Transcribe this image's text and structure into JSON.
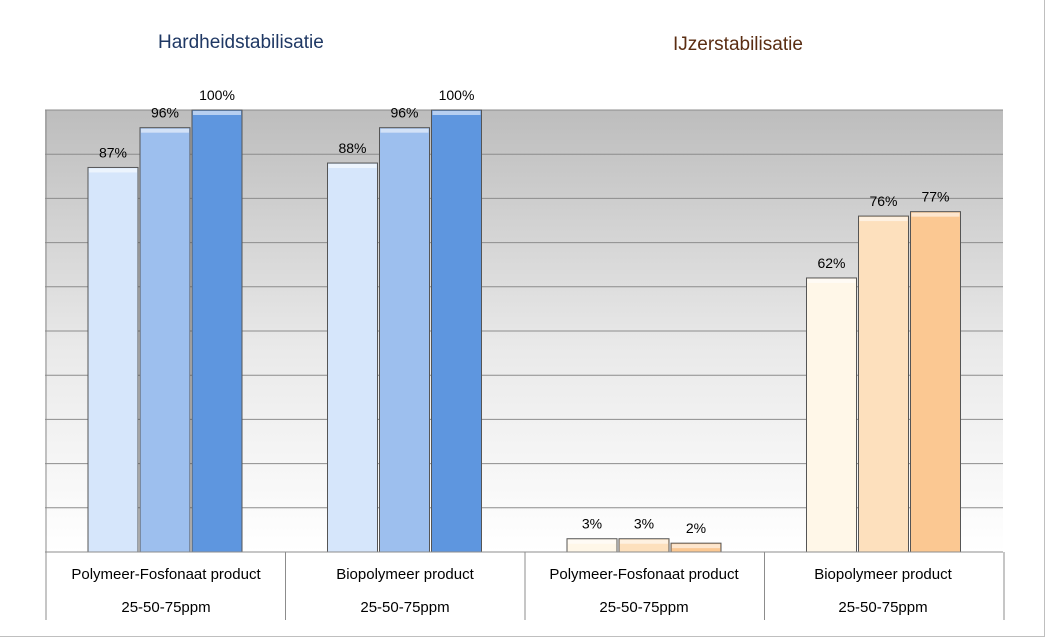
{
  "chart_data": [
    {
      "type": "bar",
      "title": "Hardheidstabilisatie",
      "categories": [
        "Polymeer-Fosfonaat product",
        "Biopolymeer product"
      ],
      "subcategory_label": "25-50-75ppm",
      "series": [
        {
          "values": [
            87,
            88
          ]
        },
        {
          "values": [
            96,
            96
          ]
        },
        {
          "values": [
            100,
            100
          ]
        }
      ],
      "data_labels": [
        [
          "87%",
          "96%",
          "100%"
        ],
        [
          "88%",
          "96%",
          "100%"
        ]
      ],
      "colors": [
        "#d6e6fb",
        "#9dbfee",
        "#5e96df"
      ],
      "ylim": [
        0,
        100
      ],
      "grid": true,
      "xlabel": "",
      "ylabel": ""
    },
    {
      "type": "bar",
      "title": "IJzerstabilisatie",
      "categories": [
        "Polymeer-Fosfonaat product",
        "Biopolymeer product"
      ],
      "subcategory_label": "25-50-75ppm",
      "series": [
        {
          "values": [
            3,
            62
          ]
        },
        {
          "values": [
            3,
            76
          ]
        },
        {
          "values": [
            2,
            77
          ]
        }
      ],
      "data_labels": [
        [
          "3%",
          "3%",
          "2%"
        ],
        [
          "62%",
          "76%",
          "77%"
        ]
      ],
      "colors": [
        "#fff7e8",
        "#fde0bd",
        "#fbc892"
      ],
      "ylim": [
        0,
        100
      ],
      "grid": true,
      "xlabel": "",
      "ylabel": ""
    }
  ]
}
